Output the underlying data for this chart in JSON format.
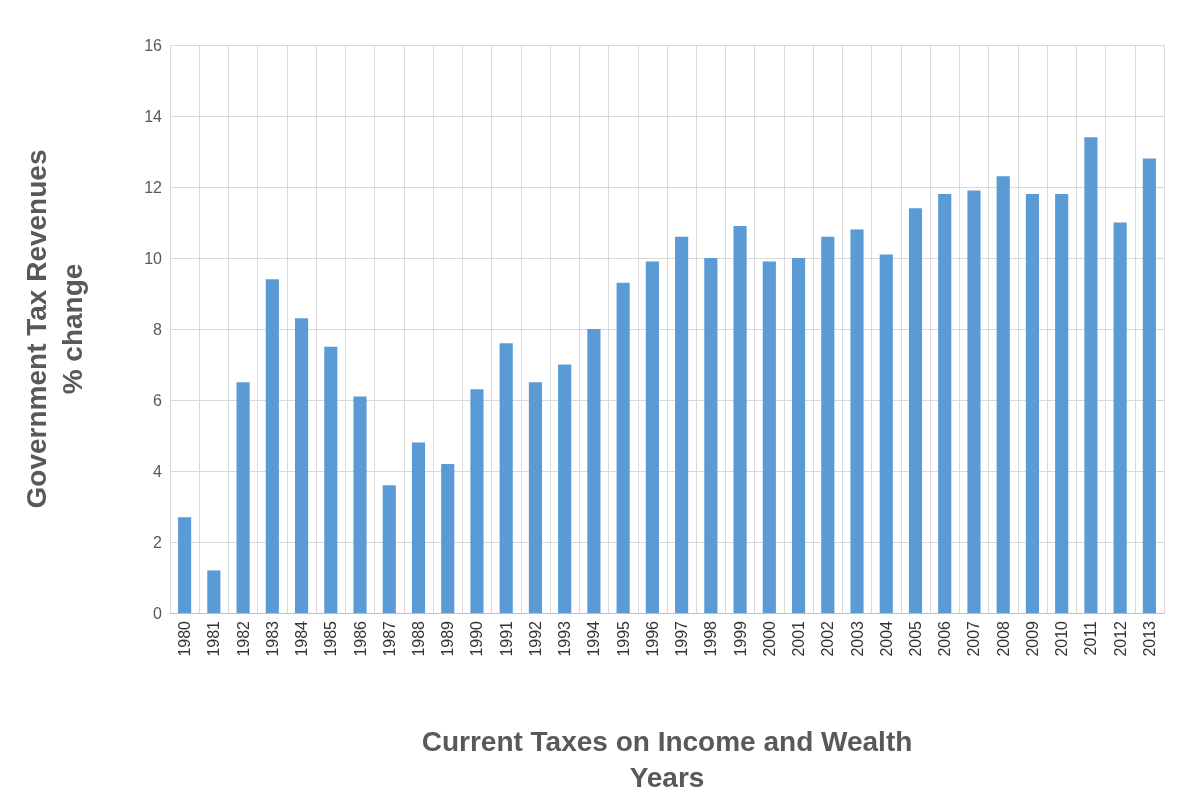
{
  "chart_data": {
    "type": "bar",
    "xlabel": "Current Taxes on Income and Wealth\nYears",
    "ylabel": "Government Tax Revenues\n% change",
    "categories": [
      "1980",
      "1981",
      "1982",
      "1983",
      "1984",
      "1985",
      "1986",
      "1987",
      "1988",
      "1989",
      "1990",
      "1991",
      "1992",
      "1993",
      "1994",
      "1995",
      "1996",
      "1997",
      "1998",
      "1999",
      "2000",
      "2001",
      "2002",
      "2003",
      "2004",
      "2005",
      "2006",
      "2007",
      "2008",
      "2009",
      "2010",
      "2011",
      "2012",
      "2013"
    ],
    "values": [
      2.7,
      1.2,
      6.5,
      9.4,
      8.3,
      7.5,
      6.1,
      3.6,
      4.8,
      4.2,
      6.3,
      7.6,
      6.5,
      7.0,
      8.0,
      9.3,
      9.9,
      10.6,
      10.0,
      10.9,
      9.9,
      10.0,
      10.6,
      10.8,
      10.1,
      11.4,
      11.8,
      11.9,
      12.3,
      11.8,
      11.8,
      13.4,
      11.0,
      12.8
    ],
    "color": "#5b9bd5",
    "ylim": [
      0,
      16
    ],
    "yticks": [
      0,
      2,
      4,
      6,
      8,
      10,
      12,
      14,
      16
    ],
    "grid": true
  }
}
